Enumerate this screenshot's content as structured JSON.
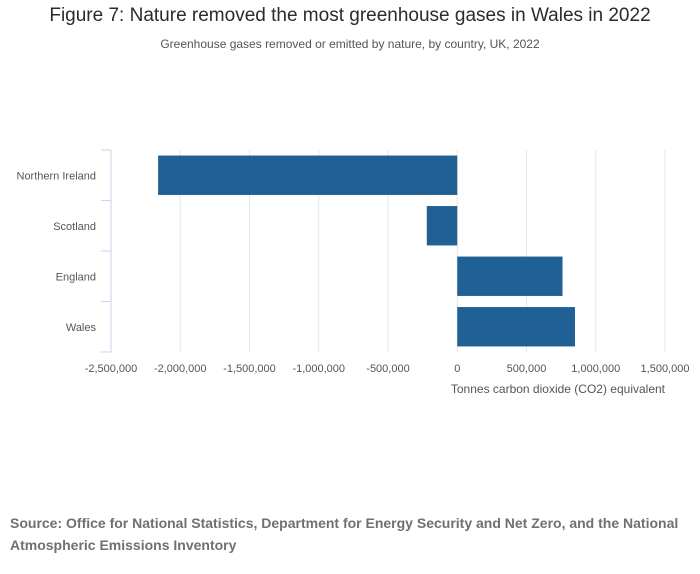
{
  "chart_data": {
    "type": "bar",
    "orientation": "horizontal",
    "title": "Figure 7: Nature removed the most greenhouse gases in Wales in 2022",
    "subtitle": "Greenhouse gases removed or emitted by nature, by country, UK, 2022",
    "categories": [
      "Northern Ireland",
      "Scotland",
      "England",
      "Wales"
    ],
    "values": [
      -2160000,
      -220000,
      760000,
      850000
    ],
    "xlabel": "Tonnes carbon dioxide (CO2) equivalent",
    "ylabel": "",
    "xlim": [
      -2500000,
      1500000
    ],
    "ticks": [
      -2500000,
      -2000000,
      -1500000,
      -1000000,
      -500000,
      0,
      500000,
      1000000,
      1500000
    ],
    "tick_labels": [
      "-2,500,000",
      "-2,000,000",
      "-1,500,000",
      "-1,000,000",
      "-500,000",
      "0",
      "500,000",
      "1,000,000",
      "1,500,000"
    ],
    "grid": true,
    "bar_color": "#206095",
    "source": "Source: Office for National Statistics, Department for Energy Security and Net Zero, and the National Atmospheric Emissions Inventory"
  }
}
